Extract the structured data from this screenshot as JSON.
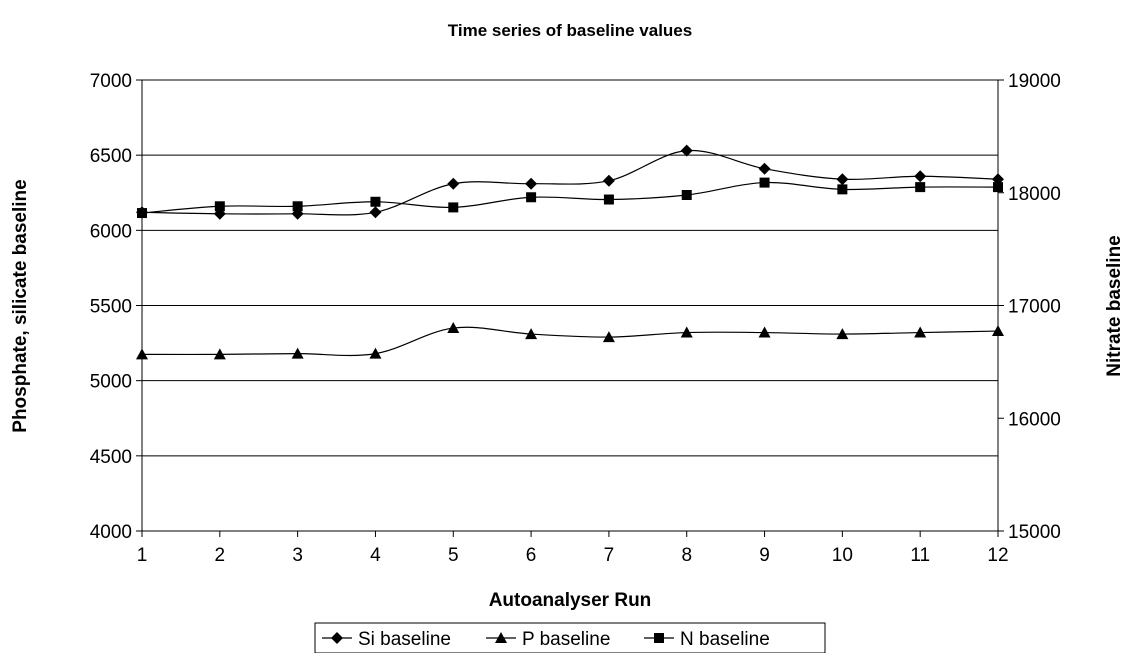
{
  "chart_data": {
    "type": "line",
    "title": "Time series of baseline values",
    "xlabel": "Autoanalyser Run",
    "ylabel_left": "Phosphate, silicate baseline",
    "ylabel_right": "Nitrate baseline",
    "x": [
      1,
      2,
      3,
      4,
      5,
      6,
      7,
      8,
      9,
      10,
      11,
      12
    ],
    "x_tick_labels": [
      "1",
      "2",
      "3",
      "4",
      "5",
      "6",
      "7",
      "8",
      "9",
      "10",
      "11",
      "12"
    ],
    "ylim_left": [
      4000,
      7000
    ],
    "ylim_right": [
      15000,
      19000
    ],
    "y_ticks_left": [
      "4000",
      "4500",
      "5000",
      "5500",
      "6000",
      "6500",
      "7000"
    ],
    "y_ticks_right": [
      "15000",
      "16000",
      "17000",
      "18000",
      "19000"
    ],
    "grid": "horizontal",
    "legend_position": "bottom",
    "series": [
      {
        "name": "Si baseline",
        "axis": "left",
        "marker": "diamond",
        "values": [
          6120,
          6110,
          6110,
          6120,
          6310,
          6310,
          6330,
          6530,
          6410,
          6340,
          6360,
          6340
        ]
      },
      {
        "name": "P baseline",
        "axis": "left",
        "marker": "triangle",
        "values": [
          5175,
          5175,
          5180,
          5180,
          5350,
          5310,
          5290,
          5320,
          5320,
          5310,
          5320,
          5330
        ]
      },
      {
        "name": "N baseline",
        "axis": "right",
        "marker": "square",
        "values": [
          17820,
          17880,
          17880,
          17920,
          17870,
          17960,
          17940,
          17980,
          18090,
          18030,
          18050,
          18050
        ]
      }
    ]
  }
}
